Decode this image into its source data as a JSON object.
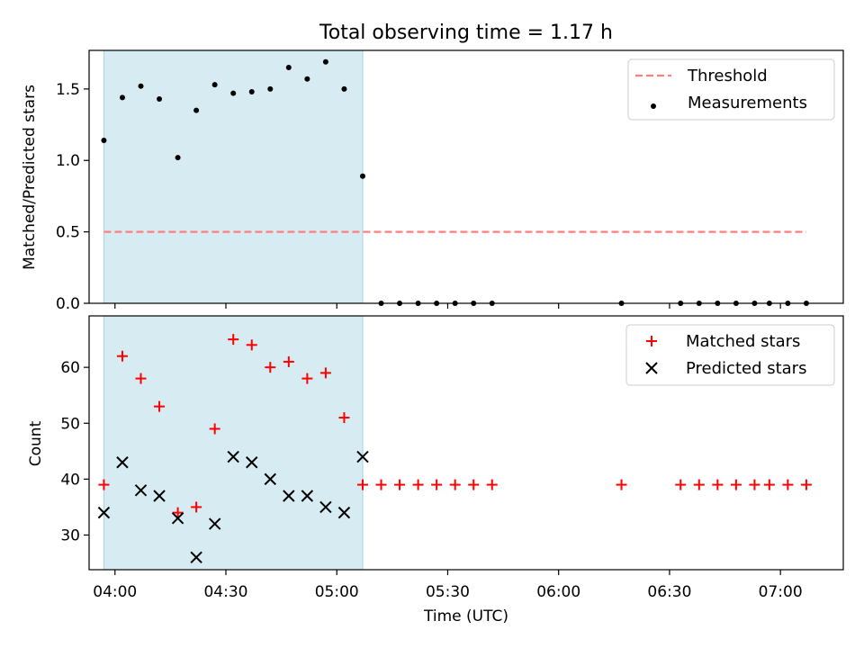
{
  "chart_data": [
    {
      "type": "scatter",
      "title": "Total observing time = 1.17 h",
      "xlabel": "",
      "ylabel": "Matched/Predicted stars",
      "ylim": [
        0,
        1.77
      ],
      "yticks": [
        0.0,
        0.5,
        1.0,
        1.5
      ],
      "ytick_labels": [
        "0.0",
        "0.5",
        "1.0",
        "1.5"
      ],
      "grid": false,
      "legend_position": "top-right",
      "highlight": {
        "x_start": "03:57",
        "x_end": "05:07",
        "color": "#add8e6"
      },
      "threshold": {
        "name": "Threshold",
        "value": 0.5,
        "x_start": "03:57",
        "x_end": "07:07",
        "color": "#ff7f7f",
        "style": "dashed"
      },
      "series": [
        {
          "name": "Measurements",
          "marker": "dot",
          "color": "#000000",
          "x": [
            "03:57",
            "04:02",
            "04:07",
            "04:12",
            "04:17",
            "04:22",
            "04:27",
            "04:32",
            "04:37",
            "04:42",
            "04:47",
            "04:52",
            "04:57",
            "05:02",
            "05:07",
            "05:12",
            "05:17",
            "05:22",
            "05:27",
            "05:32",
            "05:37",
            "05:42",
            "06:17",
            "06:33",
            "06:38",
            "06:43",
            "06:48",
            "06:53",
            "06:57",
            "07:02",
            "07:07"
          ],
          "y": [
            1.14,
            1.44,
            1.52,
            1.43,
            1.02,
            1.35,
            1.53,
            1.47,
            1.48,
            1.5,
            1.65,
            1.57,
            1.69,
            1.5,
            0.89,
            0,
            0,
            0,
            0,
            0,
            0,
            0,
            0,
            0,
            0,
            0,
            0,
            0,
            0,
            0,
            0
          ]
        }
      ]
    },
    {
      "type": "scatter",
      "title": "",
      "xlabel": "Time (UTC)",
      "ylabel": "Count",
      "ylim": [
        23.8,
        69.2
      ],
      "yticks": [
        30,
        40,
        50,
        60
      ],
      "ytick_labels": [
        "30",
        "40",
        "50",
        "60"
      ],
      "xlim": [
        "03:53",
        "07:17"
      ],
      "xticks": [
        "04:00",
        "04:30",
        "05:00",
        "05:30",
        "06:00",
        "06:30",
        "07:00"
      ],
      "xtick_labels": [
        "04:00",
        "04:30",
        "05:00",
        "05:30",
        "06:00",
        "06:30",
        "07:00"
      ],
      "grid": false,
      "legend_position": "top-right",
      "highlight": {
        "x_start": "03:57",
        "x_end": "05:07",
        "color": "#add8e6"
      },
      "series": [
        {
          "name": "Matched stars",
          "marker": "plus",
          "color": "#ff0000",
          "x": [
            "03:57",
            "04:02",
            "04:07",
            "04:12",
            "04:17",
            "04:22",
            "04:27",
            "04:32",
            "04:37",
            "04:42",
            "04:47",
            "04:52",
            "04:57",
            "05:02",
            "05:07",
            "05:12",
            "05:17",
            "05:22",
            "05:27",
            "05:32",
            "05:37",
            "05:42",
            "06:17",
            "06:33",
            "06:38",
            "06:43",
            "06:48",
            "06:53",
            "06:57",
            "07:02",
            "07:07"
          ],
          "y": [
            39,
            62,
            58,
            53,
            34,
            35,
            49,
            65,
            64,
            60,
            61,
            58,
            59,
            51,
            39,
            39,
            39,
            39,
            39,
            39,
            39,
            39,
            39,
            39,
            39,
            39,
            39,
            39,
            39,
            39,
            39
          ]
        },
        {
          "name": "Predicted stars",
          "marker": "x",
          "color": "#000000",
          "x": [
            "03:57",
            "04:02",
            "04:07",
            "04:12",
            "04:17",
            "04:22",
            "04:27",
            "04:32",
            "04:37",
            "04:42",
            "04:47",
            "04:52",
            "04:57",
            "05:02",
            "05:07"
          ],
          "y": [
            34,
            43,
            38,
            37,
            33,
            26,
            32,
            44,
            43,
            40,
            37,
            37,
            35,
            34,
            44
          ]
        }
      ]
    }
  ]
}
